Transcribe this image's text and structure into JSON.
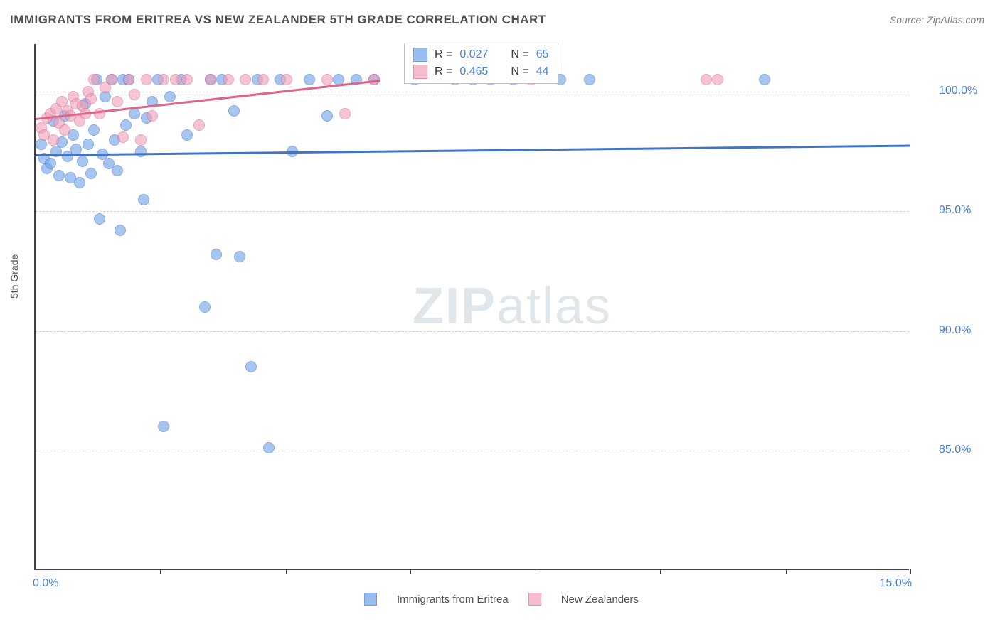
{
  "title": "IMMIGRANTS FROM ERITREA VS NEW ZEALANDER 5TH GRADE CORRELATION CHART",
  "source": "Source: ZipAtlas.com",
  "watermark_bold": "ZIP",
  "watermark_rest": "atlas",
  "chart": {
    "type": "scatter",
    "background_color": "#ffffff",
    "grid_color": "#d0d0d0",
    "axis_color": "#404040",
    "xlim": [
      0,
      15
    ],
    "ylim": [
      80,
      102
    ],
    "x_start_label": "0.0%",
    "x_end_label": "15.0%",
    "y_ticks": [
      85,
      90,
      95,
      100
    ],
    "y_tick_labels": [
      "85.0%",
      "90.0%",
      "95.0%",
      "100.0%"
    ],
    "x_minor_ticks": [
      0,
      2.14,
      4.29,
      6.43,
      8.57,
      10.71,
      12.86,
      15
    ],
    "ylabel": "5th Grade",
    "marker_radius": 8,
    "marker_fill_opacity": 0.35,
    "tick_label_fontsize": 16,
    "ylabel_fontsize": 14,
    "title_fontsize": 17,
    "series": [
      {
        "name": "Immigrants from Eritrea",
        "color": "#6e9fe8",
        "stroke": "#3f74c9",
        "R": "0.027",
        "N": "65",
        "trend": {
          "x1": 0,
          "y1": 97.4,
          "x2": 15,
          "y2": 97.8
        },
        "points": [
          [
            0.1,
            97.8
          ],
          [
            0.15,
            97.2
          ],
          [
            0.2,
            96.8
          ],
          [
            0.25,
            97.0
          ],
          [
            0.3,
            98.8
          ],
          [
            0.35,
            97.5
          ],
          [
            0.4,
            96.5
          ],
          [
            0.45,
            97.9
          ],
          [
            0.5,
            99.0
          ],
          [
            0.55,
            97.3
          ],
          [
            0.6,
            96.4
          ],
          [
            0.65,
            98.2
          ],
          [
            0.7,
            97.6
          ],
          [
            0.75,
            96.2
          ],
          [
            0.8,
            97.1
          ],
          [
            0.85,
            99.5
          ],
          [
            0.9,
            97.8
          ],
          [
            0.95,
            96.6
          ],
          [
            1.0,
            98.4
          ],
          [
            1.05,
            100.5
          ],
          [
            1.1,
            94.7
          ],
          [
            1.15,
            97.4
          ],
          [
            1.2,
            99.8
          ],
          [
            1.25,
            97.0
          ],
          [
            1.3,
            100.5
          ],
          [
            1.35,
            98.0
          ],
          [
            1.4,
            96.7
          ],
          [
            1.45,
            94.2
          ],
          [
            1.5,
            100.5
          ],
          [
            1.55,
            98.6
          ],
          [
            1.6,
            100.5
          ],
          [
            1.7,
            99.1
          ],
          [
            1.8,
            97.5
          ],
          [
            1.85,
            95.5
          ],
          [
            1.9,
            98.9
          ],
          [
            2.0,
            99.6
          ],
          [
            2.1,
            100.5
          ],
          [
            2.2,
            86.0
          ],
          [
            2.3,
            99.8
          ],
          [
            2.5,
            100.5
          ],
          [
            2.6,
            98.2
          ],
          [
            2.9,
            91.0
          ],
          [
            3.0,
            100.5
          ],
          [
            3.1,
            93.2
          ],
          [
            3.2,
            100.5
          ],
          [
            3.4,
            99.2
          ],
          [
            3.5,
            93.1
          ],
          [
            3.7,
            88.5
          ],
          [
            3.8,
            100.5
          ],
          [
            4.0,
            85.1
          ],
          [
            4.2,
            100.5
          ],
          [
            4.4,
            97.5
          ],
          [
            4.7,
            100.5
          ],
          [
            5.2,
            100.5
          ],
          [
            5.5,
            100.5
          ],
          [
            5.8,
            100.5
          ],
          [
            6.5,
            100.5
          ],
          [
            7.2,
            100.5
          ],
          [
            7.5,
            100.5
          ],
          [
            7.8,
            100.5
          ],
          [
            8.2,
            100.5
          ],
          [
            9.0,
            100.5
          ],
          [
            9.5,
            100.5
          ],
          [
            12.5,
            100.5
          ],
          [
            5.0,
            99.0
          ]
        ]
      },
      {
        "name": "New Zealanders",
        "color": "#f0a0b8",
        "stroke": "#e06688",
        "R": "0.465",
        "N": "44",
        "trend": {
          "x1": 0,
          "y1": 98.9,
          "x2": 5.9,
          "y2": 100.5
        },
        "points": [
          [
            0.1,
            98.5
          ],
          [
            0.15,
            98.2
          ],
          [
            0.2,
            98.9
          ],
          [
            0.25,
            99.1
          ],
          [
            0.3,
            98.0
          ],
          [
            0.35,
            99.3
          ],
          [
            0.4,
            98.7
          ],
          [
            0.45,
            99.6
          ],
          [
            0.5,
            98.4
          ],
          [
            0.55,
            99.2
          ],
          [
            0.6,
            99.0
          ],
          [
            0.65,
            99.8
          ],
          [
            0.7,
            99.5
          ],
          [
            0.75,
            98.8
          ],
          [
            0.8,
            99.4
          ],
          [
            0.85,
            99.1
          ],
          [
            0.9,
            100.0
          ],
          [
            0.95,
            99.7
          ],
          [
            1.0,
            100.5
          ],
          [
            1.1,
            99.1
          ],
          [
            1.2,
            100.2
          ],
          [
            1.3,
            100.5
          ],
          [
            1.4,
            99.6
          ],
          [
            1.5,
            98.1
          ],
          [
            1.6,
            100.5
          ],
          [
            1.7,
            99.9
          ],
          [
            1.8,
            98.0
          ],
          [
            1.9,
            100.5
          ],
          [
            2.0,
            99.0
          ],
          [
            2.2,
            100.5
          ],
          [
            2.4,
            100.5
          ],
          [
            2.6,
            100.5
          ],
          [
            2.8,
            98.6
          ],
          [
            3.0,
            100.5
          ],
          [
            3.3,
            100.5
          ],
          [
            3.6,
            100.5
          ],
          [
            3.9,
            100.5
          ],
          [
            4.3,
            100.5
          ],
          [
            5.0,
            100.5
          ],
          [
            5.3,
            99.1
          ],
          [
            8.5,
            100.5
          ],
          [
            11.5,
            100.5
          ],
          [
            11.7,
            100.5
          ],
          [
            5.8,
            100.5
          ]
        ]
      }
    ],
    "legend_top": {
      "R_label": "R =",
      "N_label": "N ="
    },
    "legend_bottom": {
      "items": [
        "Immigrants from Eritrea",
        "New Zealanders"
      ]
    }
  }
}
